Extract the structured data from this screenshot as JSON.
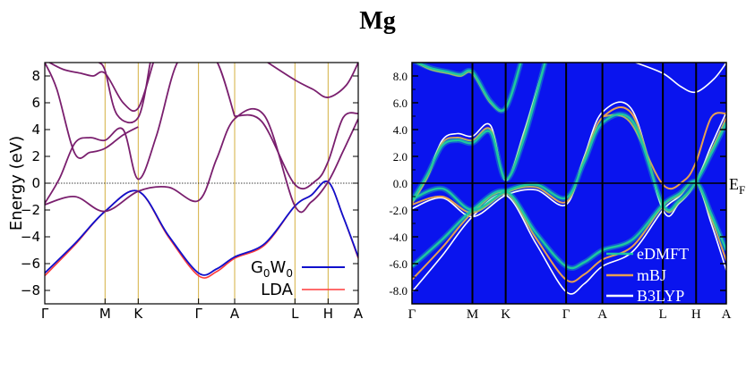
{
  "title": "Mg",
  "colors": {
    "g0w0": "#1010cc",
    "lda": "#ff3a3a",
    "overlap": "#7a1f6e",
    "kline_left": "#d4b040",
    "bg_right": "#0a14ee",
    "edmft": "#1ec8a0",
    "mbj": "#e8a050",
    "b3lyp": "#ffffff",
    "kline_right": "#000000",
    "fermi_right": "#000000"
  },
  "chart_data": [
    {
      "type": "line",
      "subtype": "band-structure",
      "ylabel": "Energy (eV)",
      "ylim": [
        -9,
        9
      ],
      "yticks": [
        "8",
        "6",
        "4",
        "2",
        "0",
        "−2",
        "−4",
        "−6",
        "−8"
      ],
      "ytick_values": [
        8,
        6,
        4,
        2,
        0,
        -2,
        -4,
        -6,
        -8
      ],
      "kpoint_labels": [
        "Γ",
        "M",
        "K",
        "Γ",
        "A",
        "L",
        "H",
        "A"
      ],
      "kpoint_positions": [
        0,
        1.0,
        1.55,
        2.55,
        3.15,
        4.15,
        4.7,
        5.2
      ],
      "legend": {
        "placement": "bottom-right",
        "entries": [
          {
            "name": "G",
            "sub": "0",
            "name2": "W",
            "sub2": "0",
            "color_key": "g0w0"
          },
          {
            "name": "LDA",
            "color_key": "lda"
          }
        ]
      },
      "series": [
        {
          "name": "G0W0",
          "bands": [
            {
              "k": [
                0,
                0.5,
                1.0,
                1.55,
                2.05,
                2.55,
                2.85,
                3.15,
                3.65,
                4.15,
                4.42,
                4.7,
                4.95,
                5.2
              ],
              "e": [
                -6.7,
                -4.5,
                -2.1,
                -0.6,
                -3.9,
                -6.7,
                -6.4,
                -5.5,
                -4.5,
                -1.7,
                -0.9,
                0.1,
                -2.5,
                -5.5
              ]
            },
            {
              "k": [
                0,
                0.5,
                1.0,
                1.55,
                2.05,
                2.55,
                2.85,
                3.15,
                3.65,
                4.15,
                4.42,
                4.7,
                4.95,
                5.2
              ],
              "e": [
                -1.6,
                -1.0,
                -2.1,
                -0.6,
                -0.3,
                -1.3,
                1.8,
                4.8,
                5.0,
                -1.7,
                -1.4,
                0.1,
                2.4,
                4.8
              ]
            },
            {
              "k": [
                0,
                0.25,
                0.5,
                0.75,
                1.0,
                1.3,
                1.55,
                1.85,
                2.2,
                2.55,
                2.85,
                3.15
              ],
              "e": [
                -1.5,
                0.4,
                3.0,
                3.4,
                3.2,
                4.0,
                0.3,
                3.5,
                9.0,
                9.2,
                9.1,
                5.0
              ]
            },
            {
              "k": [
                0,
                0.2,
                0.5,
                0.75,
                1.0,
                1.3,
                1.55
              ],
              "e": [
                9.0,
                7.0,
                2.2,
                2.3,
                2.6,
                3.6,
                4.2
              ]
            },
            {
              "k": [
                0,
                0.3,
                0.6,
                0.8,
                1.0,
                1.3,
                1.55,
                1.8
              ],
              "e": [
                9.2,
                8.5,
                8.2,
                8.0,
                8.2,
                6.0,
                5.6,
                9.0
              ]
            },
            {
              "k": [
                0.9,
                1.0,
                1.2,
                1.55,
                1.75
              ],
              "e": [
                9.0,
                8.4,
                5.1,
                4.9,
                9.0
              ]
            },
            {
              "k": [
                3.15,
                3.6,
                4.15,
                4.5,
                4.7,
                4.95,
                5.2
              ],
              "e": [
                5.0,
                4.6,
                -0.1,
                0.2,
                1.6,
                4.9,
                5.2
              ]
            },
            {
              "k": [
                3.7,
                4.15,
                4.45,
                4.7,
                5.0,
                5.2
              ],
              "e": [
                9.0,
                7.7,
                7.0,
                6.4,
                7.3,
                9.0
              ]
            }
          ]
        },
        {
          "name": "LDA",
          "bands": [
            {
              "k": [
                0,
                0.5,
                1.0,
                1.55,
                2.05,
                2.55,
                2.85,
                3.15,
                3.65,
                4.15,
                4.42,
                4.7,
                4.95,
                5.2
              ],
              "e": [
                -6.9,
                -4.6,
                -2.1,
                -0.6,
                -4.0,
                -6.9,
                -6.6,
                -5.6,
                -4.6,
                -1.7,
                -0.9,
                0.1,
                -2.5,
                -5.6
              ]
            }
          ]
        }
      ]
    },
    {
      "type": "heatmap",
      "subtype": "spectral-function-with-bands",
      "ylim": [
        -9,
        9
      ],
      "yticks": [
        "8.0",
        "6.0",
        "4.0",
        "2.0",
        "0.0",
        "-2.0",
        "-4.0",
        "-6.0",
        "-8.0"
      ],
      "ytick_values": [
        8,
        6,
        4,
        2,
        0,
        -2,
        -4,
        -6,
        -8
      ],
      "kpoint_labels": [
        "Γ",
        "M",
        "K",
        "Γ",
        "A",
        "L",
        "H",
        "A"
      ],
      "kpoint_positions": [
        0,
        1.0,
        1.55,
        2.55,
        3.15,
        4.15,
        4.7,
        5.2
      ],
      "fermi_label": "E",
      "fermi_sub": "F",
      "legend": {
        "placement": "bottom-right",
        "entries": [
          {
            "name": "eDMFT",
            "color_key": "edmft"
          },
          {
            "name": "mBJ",
            "color_key": "mbj"
          },
          {
            "name": "B3LYP",
            "color_key": "b3lyp"
          }
        ]
      },
      "series": [
        {
          "name": "B3LYP",
          "bands": [
            {
              "k": [
                0,
                0.5,
                1.0,
                1.55,
                2.05,
                2.55,
                2.85,
                3.15,
                3.65,
                4.15,
                4.42,
                4.7,
                4.95,
                5.2
              ],
              "e": [
                -8.1,
                -5.4,
                -2.5,
                -0.9,
                -4.5,
                -8.1,
                -7.5,
                -6.2,
                -5.1,
                -2.0,
                -1.0,
                0.1,
                -3.0,
                -6.5
              ]
            },
            {
              "k": [
                0,
                0.5,
                1.0,
                1.55,
                2.05,
                2.55,
                2.85,
                3.15,
                3.65,
                4.15,
                4.42,
                4.7,
                4.95,
                5.2
              ],
              "e": [
                -1.9,
                -1.1,
                -2.5,
                -0.9,
                -0.5,
                -1.6,
                2.0,
                5.3,
                5.4,
                -2.0,
                -1.5,
                0.1,
                2.8,
                5.3
              ]
            },
            {
              "k": [
                0,
                0.25,
                0.5,
                0.75,
                1.0,
                1.3,
                1.55,
                1.85,
                2.2
              ],
              "e": [
                -1.5,
                0.5,
                3.2,
                3.7,
                3.5,
                4.3,
                0.2,
                3.8,
                9.0
              ]
            },
            {
              "k": [
                3.7,
                4.15,
                4.45,
                4.7,
                5.0,
                5.2
              ],
              "e": [
                9.0,
                8.2,
                7.2,
                6.8,
                7.8,
                9.0
              ]
            }
          ]
        },
        {
          "name": "mBJ",
          "bands": [
            {
              "k": [
                0,
                0.5,
                1.0,
                1.55,
                2.05,
                2.55,
                2.85,
                3.15,
                3.65,
                4.15,
                4.42,
                4.7,
                4.95,
                5.2
              ],
              "e": [
                -7.2,
                -4.8,
                -2.2,
                -0.7,
                -4.1,
                -7.2,
                -6.8,
                -5.7,
                -4.7,
                -1.7,
                -0.9,
                0.1,
                -2.6,
                -5.8
              ]
            },
            {
              "k": [
                0,
                0.5,
                1.0,
                1.55,
                2.05,
                2.55,
                2.85,
                3.15,
                3.65,
                4.15,
                4.42,
                4.7,
                4.95,
                5.2
              ],
              "e": [
                -1.6,
                -1.0,
                -2.2,
                -0.7,
                -0.3,
                -1.4,
                1.8,
                4.9,
                5.1,
                -1.7,
                -1.4,
                0.1,
                2.4,
                4.9
              ]
            },
            {
              "k": [
                0,
                0.25,
                0.5,
                0.75,
                1.0,
                1.3,
                1.55,
                1.85,
                2.2
              ],
              "e": [
                -1.5,
                0.4,
                3.0,
                3.4,
                3.2,
                4.0,
                0.3,
                3.5,
                9.0
              ]
            },
            {
              "k": [
                3.15,
                3.6,
                4.15,
                4.5,
                4.7,
                4.95,
                5.2
              ],
              "e": [
                5.0,
                4.6,
                -0.1,
                0.2,
                1.6,
                4.9,
                5.2
              ]
            },
            {
              "k": [
                0,
                0.3,
                0.6,
                0.8,
                1.0,
                1.3,
                1.55,
                1.8
              ],
              "e": [
                9.2,
                8.5,
                8.2,
                8.0,
                8.2,
                6.0,
                5.6,
                9.0
              ]
            }
          ]
        },
        {
          "name": "eDMFT",
          "bands": [
            {
              "k": [
                0,
                0.5,
                1.0,
                1.55,
                2.05,
                2.55,
                2.85,
                3.15,
                3.65,
                4.15,
                4.42,
                4.7,
                4.95,
                5.2
              ],
              "e": [
                -6.2,
                -4.2,
                -2.0,
                -0.6,
                -3.7,
                -6.2,
                -5.9,
                -5.0,
                -4.2,
                -1.6,
                -0.8,
                0.1,
                -2.3,
                -5.0
              ]
            },
            {
              "k": [
                0,
                0.5,
                1.0,
                1.55,
                2.05,
                2.55,
                2.85,
                3.15,
                3.65,
                4.15,
                4.42,
                4.7,
                4.95,
                5.2
              ],
              "e": [
                -1.2,
                -0.4,
                -2.0,
                -0.6,
                -0.1,
                -1.1,
                1.6,
                4.5,
                4.6,
                -1.6,
                -1.3,
                0.1,
                2.2,
                4.5
              ]
            },
            {
              "k": [
                0,
                0.25,
                0.5,
                0.75,
                1.0,
                1.3,
                1.55,
                1.85,
                2.2
              ],
              "e": [
                -1.3,
                0.6,
                2.8,
                3.2,
                3.0,
                3.8,
                0.3,
                3.3,
                9.0
              ]
            },
            {
              "k": [
                0,
                0.3,
                0.6,
                0.8,
                1.0,
                1.3,
                1.55,
                1.8
              ],
              "e": [
                9.2,
                8.6,
                8.3,
                8.1,
                8.3,
                6.1,
                5.6,
                9.0
              ]
            }
          ]
        }
      ]
    }
  ]
}
